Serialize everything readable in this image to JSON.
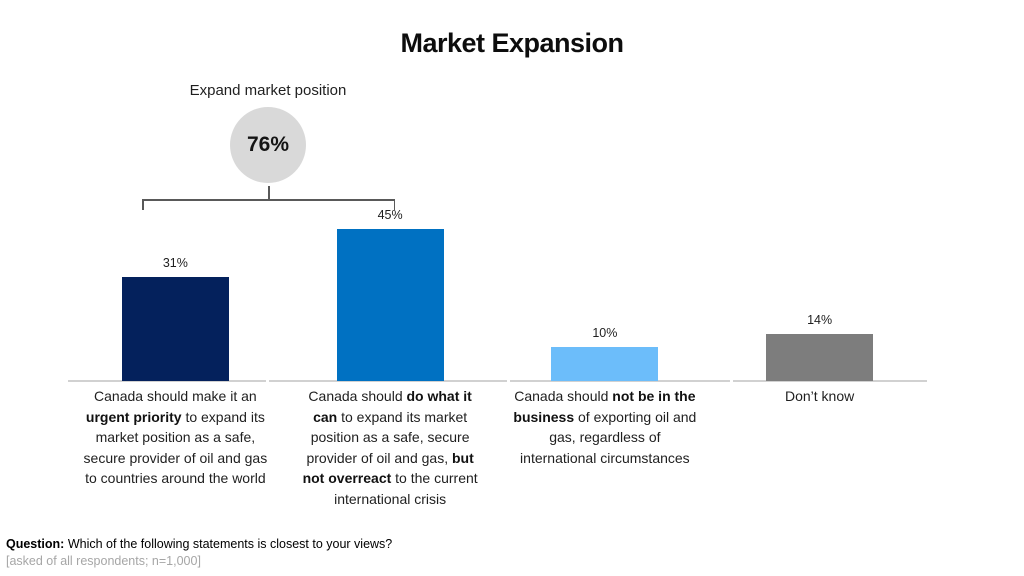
{
  "title": "Market Expansion",
  "annotation": {
    "label": "Expand market position",
    "value": 76,
    "value_label": "76%",
    "circle_fill": "#d9d9d9",
    "bracket_color": "#595959",
    "covers_categories": [
      0,
      1
    ]
  },
  "chart_data": {
    "type": "bar",
    "title": "Market Expansion",
    "categories": [
      "Canada should make it an urgent priority to expand its market position as a safe, secure provider of oil and gas to countries around the world",
      "Canada should do what it can to expand its market position as a safe, secure provider of oil and gas, but not overreact to the current international crisis",
      "Canada should not be in the business of exporting oil and gas, regardless of international circumstances",
      "Don’t know"
    ],
    "values": [
      31,
      45,
      10,
      14
    ],
    "value_labels": [
      "31%",
      "45%",
      "10%",
      "14%"
    ],
    "bar_colors": [
      "#04215c",
      "#0071c2",
      "#6cbdfa",
      "#7d7d7d"
    ],
    "ylim": [
      0,
      50
    ],
    "gridlines": false,
    "value_axis_visible": false,
    "axis_line_color": "#d1d1d1",
    "legend": null,
    "grouped_annotation": {
      "label": "Expand market position",
      "value": 76,
      "sum_of": [
        31,
        45
      ]
    }
  },
  "category_labels_rich": [
    [
      {
        "t": "Canada should make it an\n",
        "b": false
      },
      {
        "t": "urgent priority",
        "b": true
      },
      {
        "t": " to expand its\nmarket position as a safe,\nsecure provider of oil and gas\nto countries around the world",
        "b": false
      }
    ],
    [
      {
        "t": "Canada should ",
        "b": false
      },
      {
        "t": "do what it\ncan",
        "b": true
      },
      {
        "t": " to expand its market\nposition as a safe, secure\nprovider of oil and gas, ",
        "b": false
      },
      {
        "t": "but\nnot overreact",
        "b": true
      },
      {
        "t": " to the current\ninternational crisis",
        "b": false
      }
    ],
    [
      {
        "t": "Canada should ",
        "b": false
      },
      {
        "t": "not be in the\nbusiness",
        "b": true
      },
      {
        "t": " of exporting oil and\ngas, regardless of\ninternational circumstances",
        "b": false
      }
    ],
    [
      {
        "t": "Don’t know",
        "b": false
      }
    ]
  ],
  "footnote": {
    "question_label": "Question:",
    "question_text": " Which of the following statements is closest to your views?",
    "sample": "[asked of all respondents; n=1,000]",
    "sample_color": "#a6a6a6"
  }
}
